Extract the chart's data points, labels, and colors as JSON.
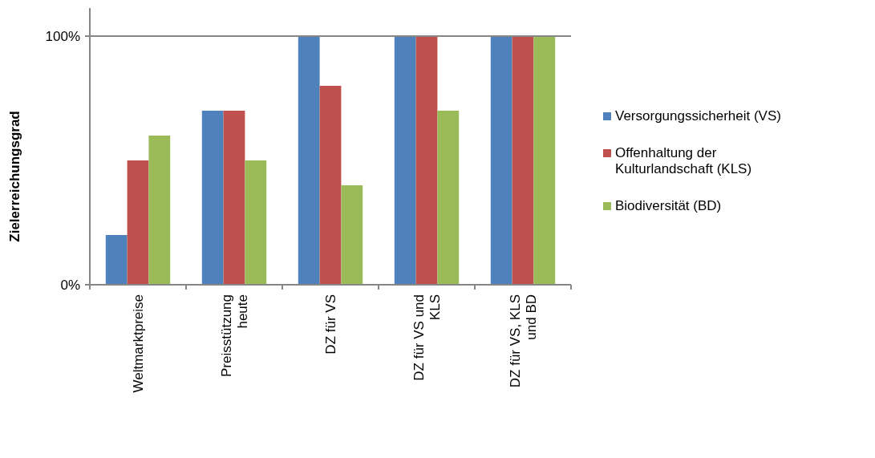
{
  "chart_data": {
    "type": "bar",
    "ylabel": "Zielerreichungsgrad",
    "categories": [
      "Weltmarktpreise",
      "Preisstützung heute",
      "DZ für VS",
      "DZ für VS und KLS",
      "DZ für VS, KLS und BD"
    ],
    "series": [
      {
        "name": "Versorgungssicherheit (VS)",
        "color": "#4f81bd",
        "values": [
          20,
          70,
          100,
          100,
          100
        ]
      },
      {
        "name": "Offenhaltung der Kulturlandschaft (KLS)",
        "color": "#c0504d",
        "values": [
          50,
          70,
          80,
          100,
          100
        ]
      },
      {
        "name": "Biodiversität (BD)",
        "color": "#9bbb59",
        "values": [
          60,
          50,
          40,
          70,
          100
        ]
      }
    ],
    "ylim": [
      0,
      100
    ],
    "yticks": [
      {
        "value": 0,
        "label": "0%"
      },
      {
        "value": 100,
        "label": "100%"
      }
    ],
    "legend": "right"
  }
}
